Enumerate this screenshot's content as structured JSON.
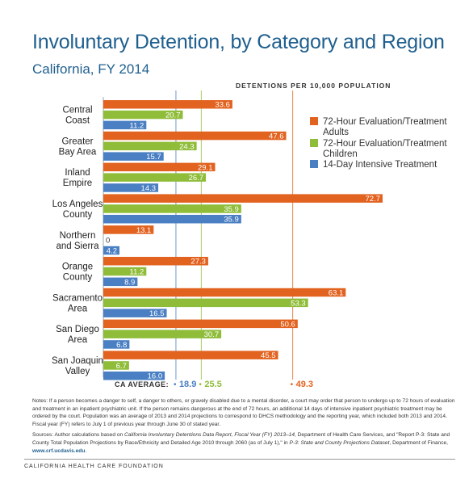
{
  "title": "Involuntary Detention, by Category and Region",
  "subtitle": "California, FY 2014",
  "units_label": "DETENTIONS PER 10,000 POPULATION",
  "colors": {
    "adults": "#e2621f",
    "children": "#8fbd3a",
    "intensive": "#4a7fc3",
    "title": "#1f5f8e"
  },
  "chart_data": {
    "type": "bar",
    "orientation": "horizontal",
    "categories": [
      [
        "Central",
        "Coast"
      ],
      [
        "Greater",
        "Bay Area"
      ],
      [
        "Inland",
        "Empire"
      ],
      [
        "Los Angeles",
        "County"
      ],
      [
        "Northern",
        "and Sierra"
      ],
      [
        "Orange",
        "County"
      ],
      [
        "Sacramento",
        "Area"
      ],
      [
        "San Diego",
        "Area"
      ],
      [
        "San Joaquin",
        "Valley"
      ]
    ],
    "series": [
      {
        "key": "adults",
        "name": [
          "72-Hour Evaluation/Treatment",
          "Adults"
        ],
        "values": [
          33.6,
          47.6,
          29.1,
          72.7,
          13.1,
          27.3,
          63.1,
          50.6,
          45.5
        ],
        "labels": [
          "33.6",
          "47.6",
          "29.1",
          "72.7",
          "13.1",
          "27.3",
          "63.1",
          "50.6",
          "45.5"
        ]
      },
      {
        "key": "children",
        "name": [
          "72-Hour Evaluation/Treatment",
          "Children"
        ],
        "values": [
          20.7,
          24.3,
          26.7,
          35.9,
          0,
          11.2,
          53.3,
          30.7,
          6.7
        ],
        "labels": [
          "20.7",
          "24.3",
          "26.7",
          "35.9",
          "0",
          "11.2",
          "53.3",
          "30.7",
          "6.7"
        ]
      },
      {
        "key": "intensive",
        "name": [
          "14-Day Intensive Treatment"
        ],
        "values": [
          11.2,
          15.7,
          14.3,
          35.9,
          4.2,
          8.9,
          16.5,
          6.8,
          16.0
        ],
        "labels": [
          "11.2",
          "15.7",
          "14.3",
          "35.9",
          "4.2",
          "8.9",
          "16.5",
          "6.8",
          "16.0"
        ]
      }
    ],
    "averages": {
      "label": "CA AVERAGE:",
      "values": [
        {
          "series": "intensive",
          "value": 18.9,
          "label": "18.9"
        },
        {
          "series": "children",
          "value": 25.5,
          "label": "25.5"
        },
        {
          "series": "adults",
          "value": 49.3,
          "label": "49.3"
        }
      ]
    },
    "xlim": [
      0,
      72.7
    ],
    "grid": false,
    "legend_position": "right"
  },
  "notes": {
    "notes_text": "Notes: If a person becomes a danger to self, a danger to others, or gravely disabled due to a mental disorder, a court may order that person to undergo up to 72 hours of evaluation and treatment in an inpatient psychiatric unit. If the person remains dangerous at the end of 72 hours, an additional 14 days of intensive inpatient psychiatric treatment may be ordered by the court. Population was an average of 2013 and 2014 projections to correspond to DHCS methodology and the reporting year, which included both 2013 and 2014. Fiscal year (FY) refers to July 1 of previous year through June 30 of stated year.",
    "sources_prefix": "Sources: Author calculations based on ",
    "sources_italic_1": "California Involuntary Detentions Data Report, Fiscal Year (FY) 2013–14",
    "sources_middle": ", Department of Health Care Services, and \"Report P-3: State and County Total Population Projections by Race/Ethnicity and Detailed Age 2010 through 2060 (as of July 1),\" in ",
    "sources_italic_2": "P-3: State and County Projections Dataset",
    "sources_suffix": ", Department of Finance, ",
    "sources_url": "www.crf.ucdavis.edu",
    "sources_end": "."
  },
  "footer": "CALIFORNIA HEALTH CARE FOUNDATION"
}
